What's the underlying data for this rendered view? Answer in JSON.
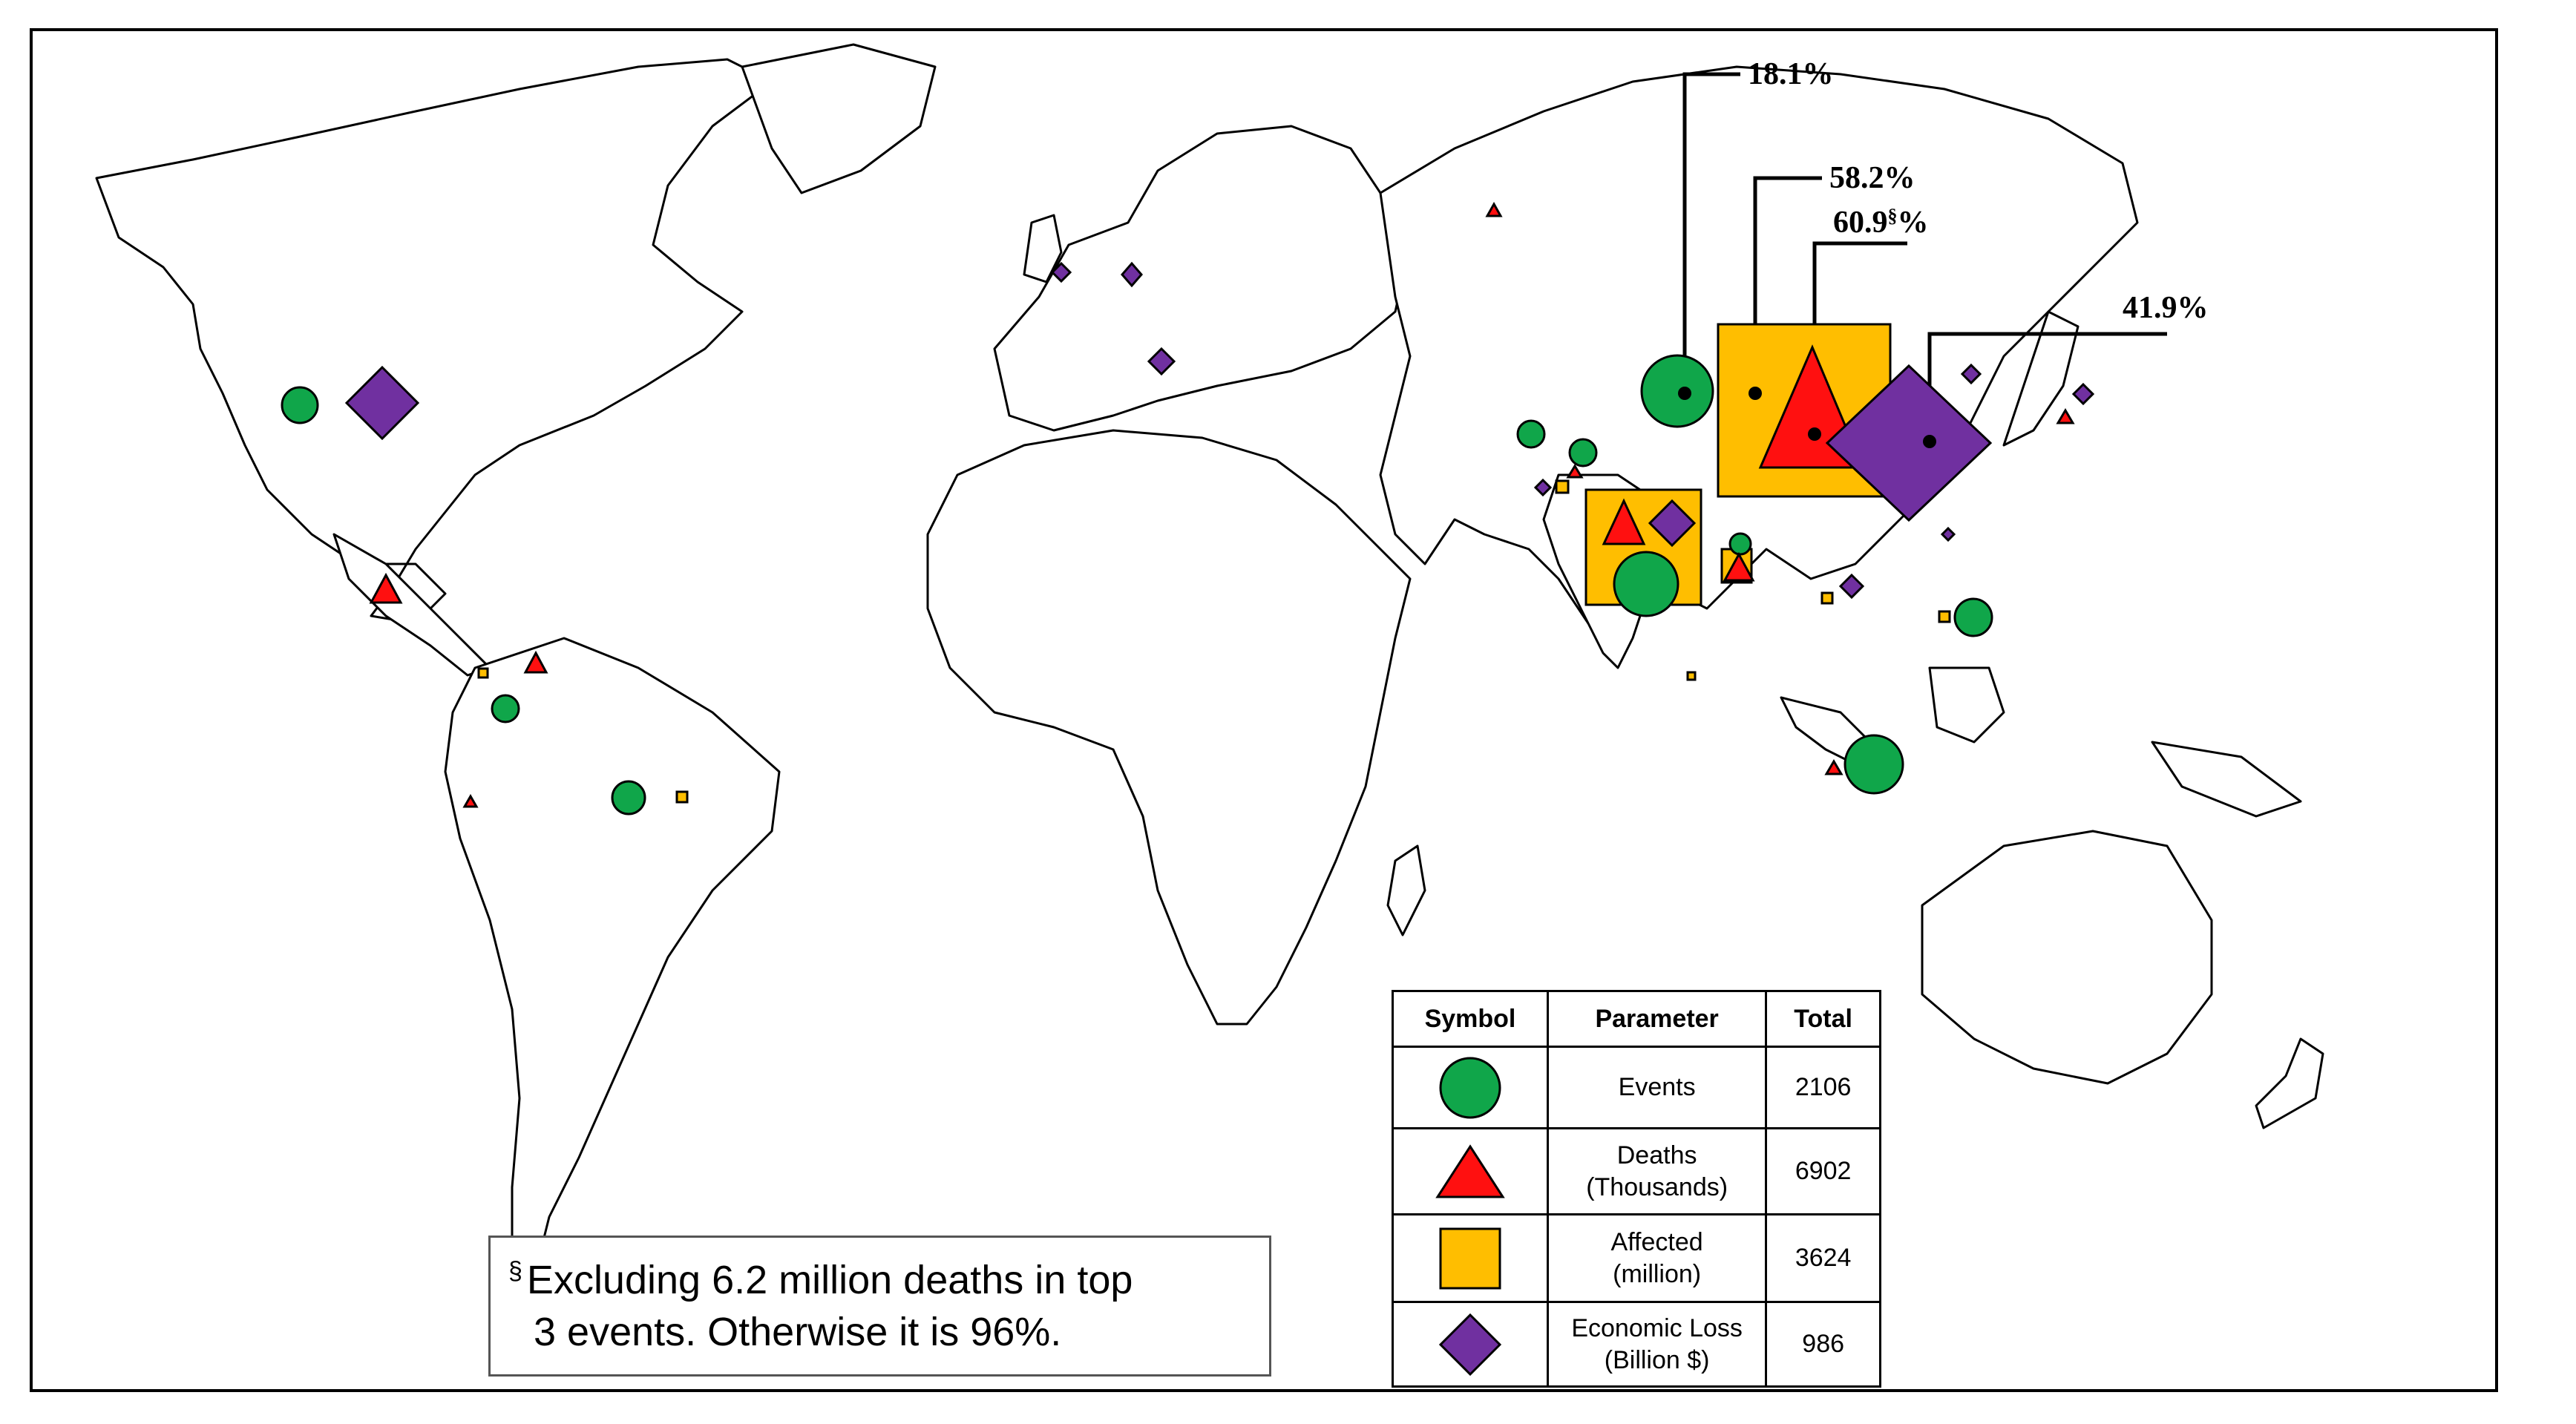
{
  "legend": {
    "headers": {
      "symbol": "Symbol",
      "parameter": "Parameter",
      "total": "Total"
    },
    "rows": [
      {
        "symbol": "circle",
        "color": "#10A64A",
        "parameter_line1": "Events",
        "parameter_line2": "",
        "total": "2106"
      },
      {
        "symbol": "triangle",
        "color": "#FF1010",
        "parameter_line1": "Deaths",
        "parameter_line2": "(Thousands)",
        "total": "6902"
      },
      {
        "symbol": "square",
        "color": "#FFBE00",
        "parameter_line1": "Affected",
        "parameter_line2": "(million)",
        "total": "3624"
      },
      {
        "symbol": "diamond",
        "color": "#7030A0",
        "parameter_line1": "Economic Loss",
        "parameter_line2": "(Billion $)",
        "total": "986"
      }
    ]
  },
  "callouts": {
    "events": "18.1%",
    "affected": "58.2%",
    "deaths_value": "60.9",
    "deaths_mark": "§",
    "deaths_unit": "%",
    "economic": "41.9%"
  },
  "footnote": {
    "mark": "§",
    "line1": "Excluding 6.2 million deaths in top",
    "line2": "3 events. Otherwise it is 96%."
  },
  "colors": {
    "events": "#10A64A",
    "deaths": "#FF1010",
    "affected": "#FFBE00",
    "economic": "#7030A0",
    "outline": "#000000"
  }
}
